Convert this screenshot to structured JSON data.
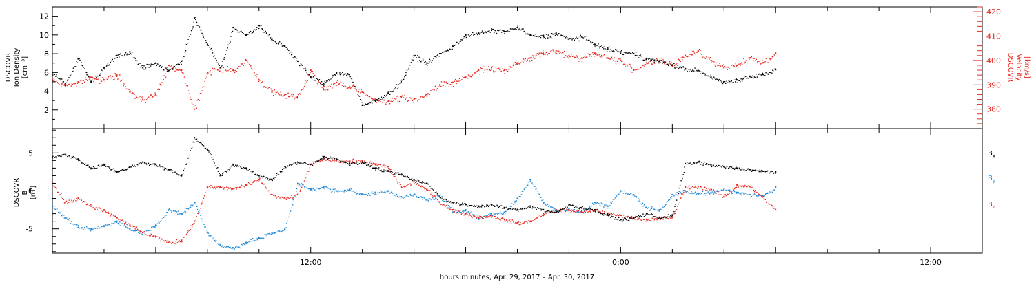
{
  "colors": {
    "axis": "#000000",
    "black": "#000000",
    "red": "#e8281e",
    "blue": "#1e88d8"
  },
  "footer": {
    "xlabel": "hours:minutes, Apr. 29, 2017 – Apr. 30, 2017"
  },
  "chart_data": [
    {
      "type": "scatter",
      "title": "",
      "xlabel": "hours:minutes, Apr. 29, 2017 – Apr. 30, 2017",
      "ylabel": [
        "DSCOVR",
        "Ion Density",
        "[cm⁻³]"
      ],
      "y2label": [
        "DSCOVR",
        "Velocity",
        "[km/s]"
      ],
      "x_tick_labels": [
        "12:00",
        "0:00",
        "12:00"
      ],
      "x_unit": "hours since 0:00 Apr. 29, 2017",
      "xlim": [
        2.0,
        38.0
      ],
      "ylim": [
        0,
        13
      ],
      "y2lim": [
        372,
        422
      ],
      "y_ticks": [
        2,
        4,
        6,
        8,
        10,
        12
      ],
      "y2_ticks": [
        380,
        390,
        400,
        410,
        420
      ],
      "series": [
        {
          "name": "Ion Density",
          "axis": "left",
          "x": [
            2.0,
            2.5,
            3.0,
            3.5,
            4.0,
            4.5,
            5.0,
            5.5,
            6.0,
            6.5,
            7.0,
            7.5,
            8.0,
            8.5,
            9.0,
            9.5,
            10.0,
            10.5,
            11.0,
            11.5,
            12.0,
            12.5,
            13.0,
            13.5,
            14.0,
            14.5,
            15.0,
            15.5,
            16.0,
            16.5,
            17.0,
            17.5,
            18.0,
            18.5,
            19.0,
            19.5,
            20.0,
            20.5,
            21.0,
            21.5,
            22.0,
            22.5,
            23.0,
            23.5,
            24.0,
            24.5,
            25.0,
            25.5,
            26.0,
            26.5,
            27.0,
            27.5,
            28.0,
            28.5,
            29.0,
            29.5,
            30.0
          ],
          "y": [
            6.0,
            4.8,
            7.5,
            5.0,
            6.5,
            7.8,
            8.2,
            6.5,
            7.0,
            6.2,
            7.2,
            11.8,
            9.0,
            6.5,
            10.8,
            10.0,
            11.0,
            9.5,
            8.8,
            7.2,
            5.5,
            4.8,
            6.0,
            5.8,
            2.5,
            3.0,
            3.8,
            5.0,
            7.8,
            7.0,
            8.0,
            8.8,
            10.0,
            10.2,
            10.5,
            10.4,
            10.8,
            10.0,
            9.8,
            10.2,
            9.6,
            9.8,
            9.0,
            8.5,
            8.2,
            8.0,
            7.5,
            7.2,
            6.8,
            6.4,
            6.2,
            5.5,
            5.0,
            5.2,
            5.6,
            5.8,
            6.3
          ]
        },
        {
          "name": "Velocity",
          "axis": "right",
          "x": [
            2.0,
            2.5,
            3.0,
            3.5,
            4.0,
            4.5,
            5.0,
            5.5,
            6.0,
            6.5,
            7.0,
            7.5,
            8.0,
            8.5,
            9.0,
            9.5,
            10.0,
            10.5,
            11.0,
            11.5,
            12.0,
            12.5,
            13.0,
            13.5,
            14.0,
            14.5,
            15.0,
            15.5,
            16.0,
            16.5,
            17.0,
            17.5,
            18.0,
            18.5,
            19.0,
            19.5,
            20.0,
            20.5,
            21.0,
            21.5,
            22.0,
            22.5,
            23.0,
            23.5,
            24.0,
            24.5,
            25.0,
            25.5,
            26.0,
            26.5,
            27.0,
            27.5,
            28.0,
            28.5,
            29.0,
            29.5,
            30.0
          ],
          "y": [
            392,
            390,
            391,
            393,
            392,
            394,
            387,
            384,
            386,
            398,
            396,
            380,
            395,
            397,
            396,
            400,
            392,
            387,
            386,
            385,
            396,
            388,
            391,
            389,
            387,
            384,
            383,
            385,
            384,
            386,
            390,
            391,
            393,
            396,
            397,
            396,
            399,
            401,
            403,
            404,
            402,
            401,
            403,
            401,
            400,
            396,
            399,
            400,
            398,
            402,
            404,
            400,
            397,
            398,
            401,
            399,
            403
          ]
        }
      ]
    },
    {
      "type": "scatter",
      "title": "",
      "xlabel": "hours:minutes, Apr. 29, 2017 – Apr. 30, 2017",
      "ylabel": [
        "DSCOVR",
        "B",
        "[nT]"
      ],
      "x_tick_labels": [
        "12:00",
        "0:00",
        "12:00"
      ],
      "x_unit": "hours since 0:00 Apr. 29, 2017",
      "xlim": [
        2.0,
        38.0
      ],
      "ylim": [
        -8.2,
        8.2
      ],
      "y_ticks": [
        -5,
        0,
        5
      ],
      "zero_line": true,
      "legend": [
        "Bx",
        "By",
        "Bz"
      ],
      "series": [
        {
          "name": "Bx",
          "x": [
            2.0,
            2.5,
            3.0,
            3.5,
            4.0,
            4.5,
            5.0,
            5.5,
            6.0,
            6.5,
            7.0,
            7.5,
            8.0,
            8.5,
            9.0,
            9.5,
            10.0,
            10.5,
            11.0,
            11.5,
            12.0,
            12.5,
            13.0,
            13.5,
            14.0,
            14.5,
            15.0,
            15.5,
            16.0,
            16.5,
            17.0,
            17.5,
            18.0,
            18.5,
            19.0,
            19.5,
            20.0,
            20.5,
            21.0,
            21.5,
            22.0,
            22.5,
            23.0,
            23.5,
            24.0,
            24.5,
            25.0,
            25.5,
            26.0,
            26.5,
            27.0,
            27.5,
            28.0,
            28.5,
            29.0,
            29.5,
            30.0
          ],
          "y": [
            4.5,
            4.8,
            4.2,
            3.0,
            3.5,
            2.5,
            3.2,
            3.8,
            3.5,
            2.8,
            2.0,
            7.0,
            5.5,
            2.0,
            3.5,
            3.0,
            2.0,
            1.5,
            3.2,
            3.8,
            3.5,
            4.5,
            4.2,
            3.6,
            3.8,
            3.0,
            2.6,
            2.2,
            1.5,
            1.0,
            -0.8,
            -1.5,
            -1.8,
            -2.0,
            -1.8,
            -2.2,
            -2.5,
            -2.0,
            -2.5,
            -2.8,
            -1.8,
            -2.2,
            -2.5,
            -3.2,
            -3.8,
            -3.5,
            -3.0,
            -3.5,
            -3.2,
            3.6,
            3.8,
            3.4,
            3.2,
            3.0,
            2.8,
            2.6,
            2.5
          ]
        },
        {
          "name": "By",
          "x": [
            2.0,
            2.5,
            3.0,
            3.5,
            4.0,
            4.5,
            5.0,
            5.5,
            6.0,
            6.5,
            7.0,
            7.5,
            8.0,
            8.5,
            9.0,
            9.5,
            10.0,
            10.5,
            11.0,
            11.5,
            12.0,
            12.5,
            13.0,
            13.5,
            14.0,
            14.5,
            15.0,
            15.5,
            16.0,
            16.5,
            17.0,
            17.5,
            18.0,
            18.5,
            19.0,
            19.5,
            20.0,
            20.5,
            21.0,
            21.5,
            22.0,
            22.5,
            23.0,
            23.5,
            24.0,
            24.5,
            25.0,
            25.5,
            26.0,
            26.5,
            27.0,
            27.5,
            28.0,
            28.5,
            29.0,
            29.5,
            30.0
          ],
          "y": [
            -2.0,
            -3.5,
            -4.8,
            -5.0,
            -4.6,
            -4.0,
            -5.0,
            -5.5,
            -4.5,
            -2.5,
            -3.0,
            -1.5,
            -5.5,
            -7.2,
            -7.5,
            -6.8,
            -6.2,
            -5.5,
            -5.0,
            1.0,
            0.2,
            0.5,
            0.0,
            0.2,
            -0.5,
            -0.2,
            0.0,
            -0.8,
            -0.5,
            -1.2,
            -0.6,
            -2.8,
            -2.5,
            -3.5,
            -3.0,
            -2.8,
            -1.0,
            1.5,
            -1.5,
            -2.5,
            -2.4,
            -2.8,
            -1.5,
            -2.0,
            0.0,
            -0.5,
            -2.2,
            -2.5,
            -0.5,
            0.0,
            -0.3,
            -0.2,
            0.2,
            -0.2,
            -0.5,
            -0.6,
            0.5
          ]
        },
        {
          "name": "Bz",
          "x": [
            2.0,
            2.5,
            3.0,
            3.5,
            4.0,
            4.5,
            5.0,
            5.5,
            6.0,
            6.5,
            7.0,
            7.5,
            8.0,
            8.5,
            9.0,
            9.5,
            10.0,
            10.5,
            11.0,
            11.5,
            12.0,
            12.5,
            13.0,
            13.5,
            14.0,
            14.5,
            15.0,
            15.5,
            16.0,
            16.5,
            17.0,
            17.5,
            18.0,
            18.5,
            19.0,
            19.5,
            20.0,
            20.5,
            21.0,
            21.5,
            22.0,
            22.5,
            23.0,
            23.5,
            24.0,
            24.5,
            25.0,
            25.5,
            26.0,
            26.5,
            27.0,
            27.5,
            28.0,
            28.5,
            29.0,
            29.5,
            30.0
          ],
          "y": [
            1.0,
            -1.5,
            -1.0,
            -2.0,
            -2.5,
            -3.5,
            -4.5,
            -5.5,
            -6.0,
            -6.8,
            -6.5,
            -4.0,
            0.5,
            0.5,
            0.3,
            0.8,
            1.5,
            -0.5,
            -1.0,
            -0.5,
            3.5,
            4.2,
            4.0,
            3.9,
            4.0,
            3.5,
            3.2,
            0.5,
            1.2,
            0.2,
            -1.5,
            -2.5,
            -3.0,
            -3.5,
            -3.2,
            -3.8,
            -4.2,
            -4.0,
            -3.0,
            -2.5,
            -2.5,
            -2.8,
            -2.5,
            -3.0,
            -3.2,
            -3.5,
            -3.8,
            -3.6,
            -3.5,
            0.5,
            0.6,
            0.2,
            -0.8,
            0.8,
            0.6,
            -0.8,
            -2.5
          ]
        }
      ]
    }
  ]
}
